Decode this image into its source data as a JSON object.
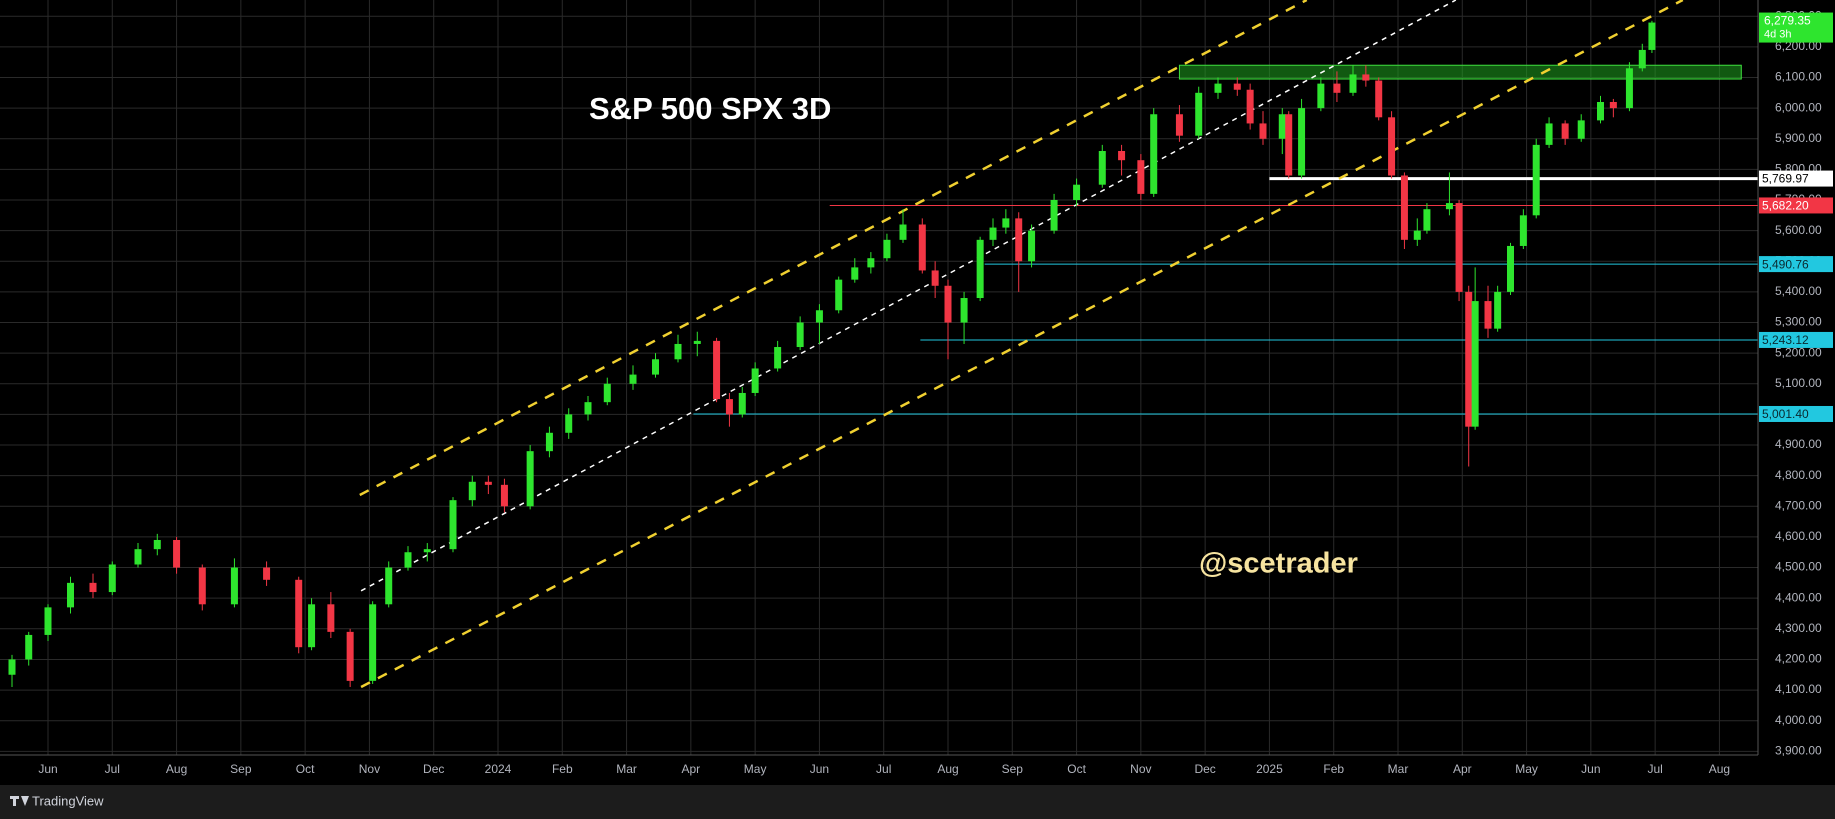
{
  "chart_data": {
    "type": "candlestick",
    "title": "S&P 500 SPX 3D",
    "watermark": "@scetrader",
    "brand": "TradingView",
    "up_color": "#2ee52e",
    "down_color": "#f23645",
    "grid": true,
    "xlim": [
      -0.56,
      26.6
    ],
    "ylim": [
      3888,
      6353
    ],
    "xticks": [
      {
        "value": 0,
        "label": "Jun"
      },
      {
        "value": 1,
        "label": "Jul"
      },
      {
        "value": 2,
        "label": "Aug"
      },
      {
        "value": 3,
        "label": "Sep"
      },
      {
        "value": 4,
        "label": "Oct"
      },
      {
        "value": 5,
        "label": "Nov"
      },
      {
        "value": 6,
        "label": "Dec"
      },
      {
        "value": 7,
        "label": "2024"
      },
      {
        "value": 8,
        "label": "Feb"
      },
      {
        "value": 9,
        "label": "Mar"
      },
      {
        "value": 10,
        "label": "Apr"
      },
      {
        "value": 11,
        "label": "May"
      },
      {
        "value": 12,
        "label": "Jun"
      },
      {
        "value": 13,
        "label": "Jul"
      },
      {
        "value": 14,
        "label": "Aug"
      },
      {
        "value": 15,
        "label": "Sep"
      },
      {
        "value": 16,
        "label": "Oct"
      },
      {
        "value": 17,
        "label": "Nov"
      },
      {
        "value": 18,
        "label": "Dec"
      },
      {
        "value": 19,
        "label": "2025"
      },
      {
        "value": 20,
        "label": "Feb"
      },
      {
        "value": 21,
        "label": "Mar"
      },
      {
        "value": 22,
        "label": "Apr"
      },
      {
        "value": 23,
        "label": "May"
      },
      {
        "value": 24,
        "label": "Jun"
      },
      {
        "value": 25,
        "label": "Jul"
      },
      {
        "value": 26,
        "label": "Aug"
      }
    ],
    "yticks": [
      {
        "value": 3900,
        "label": "3,900.00"
      },
      {
        "value": 4000,
        "label": "4,000.00"
      },
      {
        "value": 4100,
        "label": "4,100.00"
      },
      {
        "value": 4200,
        "label": "4,200.00"
      },
      {
        "value": 4300,
        "label": "4,300.00"
      },
      {
        "value": 4400,
        "label": "4,400.00"
      },
      {
        "value": 4500,
        "label": "4,500.00"
      },
      {
        "value": 4600,
        "label": "4,600.00"
      },
      {
        "value": 4700,
        "label": "4,700.00"
      },
      {
        "value": 4800,
        "label": "4,800.00"
      },
      {
        "value": 4900,
        "label": "4,900.00"
      },
      {
        "value": 5000,
        "label": "5,000.00"
      },
      {
        "value": 5100,
        "label": "5,100.00"
      },
      {
        "value": 5200,
        "label": "5,200.00"
      },
      {
        "value": 5300,
        "label": "5,300.00"
      },
      {
        "value": 5400,
        "label": "5,400.00"
      },
      {
        "value": 5500,
        "label": "5,500.00"
      },
      {
        "value": 5600,
        "label": "5,600.00"
      },
      {
        "value": 5700,
        "label": "5,700.00"
      },
      {
        "value": 5800,
        "label": "5,800.00"
      },
      {
        "value": 5900,
        "label": "5,900.00"
      },
      {
        "value": 6000,
        "label": "6,000.00"
      },
      {
        "value": 6100,
        "label": "6,100.00"
      },
      {
        "value": 6200,
        "label": "6,200.00"
      },
      {
        "value": 6300,
        "label": "6,300.00"
      }
    ],
    "x": [
      -0.56,
      -0.3,
      0.0,
      0.35,
      0.7,
      1.0,
      1.4,
      1.7,
      2.0,
      2.4,
      2.9,
      3.4,
      3.9,
      4.1,
      4.4,
      4.7,
      5.05,
      5.3,
      5.6,
      5.9,
      6.3,
      6.6,
      6.85,
      7.1,
      7.5,
      7.8,
      8.1,
      8.4,
      8.7,
      9.1,
      9.45,
      9.8,
      10.1,
      10.4,
      10.6,
      10.8,
      11.0,
      11.35,
      11.7,
      12.0,
      12.3,
      12.55,
      12.8,
      13.05,
      13.3,
      13.6,
      13.8,
      14.0,
      14.25,
      14.5,
      14.7,
      14.9,
      15.1,
      15.3,
      15.65,
      16.0,
      16.4,
      16.7,
      17.0,
      17.2,
      17.6,
      17.9,
      18.2,
      18.5,
      18.7,
      18.9,
      19.2,
      19.3,
      19.5,
      19.8,
      20.05,
      20.3,
      20.5,
      20.7,
      20.9,
      21.1,
      21.3,
      21.45,
      21.8,
      21.95,
      22.1,
      22.2,
      22.4,
      22.55,
      22.75,
      22.95,
      23.15,
      23.35,
      23.6,
      23.85,
      24.15,
      24.35,
      24.6,
      24.8,
      24.95
    ],
    "ohlc": [
      [
        4150,
        4215,
        4110,
        4200
      ],
      [
        4200,
        4290,
        4180,
        4280
      ],
      [
        4280,
        4380,
        4260,
        4370
      ],
      [
        4370,
        4470,
        4350,
        4450
      ],
      [
        4450,
        4480,
        4400,
        4420
      ],
      [
        4420,
        4520,
        4410,
        4510
      ],
      [
        4510,
        4580,
        4500,
        4560
      ],
      [
        4560,
        4610,
        4540,
        4590
      ],
      [
        4590,
        4600,
        4480,
        4500
      ],
      [
        4500,
        4510,
        4360,
        4380
      ],
      [
        4380,
        4530,
        4370,
        4500
      ],
      [
        4500,
        4520,
        4440,
        4460
      ],
      [
        4460,
        4470,
        4220,
        4240
      ],
      [
        4240,
        4400,
        4230,
        4380
      ],
      [
        4380,
        4420,
        4270,
        4290
      ],
      [
        4290,
        4300,
        4110,
        4130
      ],
      [
        4130,
        4390,
        4120,
        4380
      ],
      [
        4380,
        4520,
        4370,
        4500
      ],
      [
        4500,
        4570,
        4490,
        4550
      ],
      [
        4550,
        4580,
        4520,
        4560
      ],
      [
        4560,
        4730,
        4550,
        4720
      ],
      [
        4720,
        4800,
        4700,
        4780
      ],
      [
        4780,
        4800,
        4740,
        4770
      ],
      [
        4770,
        4790,
        4680,
        4700
      ],
      [
        4700,
        4900,
        4690,
        4880
      ],
      [
        4880,
        4960,
        4860,
        4940
      ],
      [
        4940,
        5020,
        4920,
        5000
      ],
      [
        5000,
        5060,
        4980,
        5040
      ],
      [
        5040,
        5120,
        5030,
        5100
      ],
      [
        5100,
        5160,
        5080,
        5130
      ],
      [
        5130,
        5200,
        5120,
        5180
      ],
      [
        5180,
        5260,
        5170,
        5230
      ],
      [
        5230,
        5270,
        5190,
        5240
      ],
      [
        5240,
        5250,
        5040,
        5050
      ],
      [
        5050,
        5070,
        4960,
        5000
      ],
      [
        5000,
        5090,
        4990,
        5070
      ],
      [
        5070,
        5170,
        5060,
        5150
      ],
      [
        5150,
        5240,
        5140,
        5220
      ],
      [
        5220,
        5320,
        5210,
        5300
      ],
      [
        5300,
        5360,
        5230,
        5340
      ],
      [
        5340,
        5450,
        5330,
        5440
      ],
      [
        5440,
        5510,
        5430,
        5480
      ],
      [
        5480,
        5530,
        5460,
        5510
      ],
      [
        5510,
        5590,
        5500,
        5570
      ],
      [
        5570,
        5670,
        5560,
        5620
      ],
      [
        5620,
        5640,
        5460,
        5470
      ],
      [
        5470,
        5500,
        5380,
        5420
      ],
      [
        5420,
        5440,
        5180,
        5300
      ],
      [
        5300,
        5400,
        5230,
        5380
      ],
      [
        5380,
        5580,
        5370,
        5570
      ],
      [
        5570,
        5640,
        5550,
        5610
      ],
      [
        5610,
        5670,
        5590,
        5640
      ],
      [
        5640,
        5660,
        5400,
        5500
      ],
      [
        5500,
        5620,
        5480,
        5600
      ],
      [
        5600,
        5720,
        5590,
        5700
      ],
      [
        5700,
        5770,
        5680,
        5750
      ],
      [
        5750,
        5880,
        5740,
        5860
      ],
      [
        5860,
        5880,
        5780,
        5830
      ],
      [
        5830,
        5850,
        5700,
        5720
      ],
      [
        5720,
        6000,
        5710,
        5980
      ],
      [
        5980,
        6010,
        5890,
        5910
      ],
      [
        5910,
        6070,
        5900,
        6050
      ],
      [
        6050,
        6100,
        6030,
        6080
      ],
      [
        6080,
        6100,
        6040,
        6060
      ],
      [
        6060,
        6080,
        5930,
        5950
      ],
      [
        5950,
        5990,
        5880,
        5900
      ],
      [
        5900,
        6000,
        5850,
        5980
      ],
      [
        5980,
        5990,
        5770,
        5780
      ],
      [
        5780,
        6030,
        5770,
        6000
      ],
      [
        6000,
        6100,
        5990,
        6080
      ],
      [
        6080,
        6120,
        6020,
        6050
      ],
      [
        6050,
        6140,
        6040,
        6110
      ],
      [
        6110,
        6140,
        6070,
        6090
      ],
      [
        6090,
        6100,
        5960,
        5970
      ],
      [
        5970,
        5990,
        5770,
        5780
      ],
      [
        5780,
        5790,
        5540,
        5570
      ],
      [
        5570,
        5640,
        5550,
        5600
      ],
      [
        5600,
        5690,
        5590,
        5670
      ],
      [
        5670,
        5790,
        5650,
        5690
      ],
      [
        5690,
        5700,
        5370,
        5400
      ],
      [
        5400,
        5420,
        4830,
        4960
      ],
      [
        4960,
        5480,
        4950,
        5370
      ],
      [
        5370,
        5420,
        5250,
        5280
      ],
      [
        5280,
        5420,
        5270,
        5400
      ],
      [
        5400,
        5560,
        5390,
        5550
      ],
      [
        5550,
        5670,
        5540,
        5650
      ],
      [
        5650,
        5900,
        5640,
        5880
      ],
      [
        5880,
        5970,
        5870,
        5950
      ],
      [
        5950,
        5960,
        5880,
        5900
      ],
      [
        5900,
        5980,
        5890,
        5960
      ],
      [
        5960,
        6040,
        5950,
        6020
      ],
      [
        6020,
        6030,
        5970,
        6000
      ],
      [
        6000,
        6150,
        5990,
        6130
      ],
      [
        6130,
        6210,
        6120,
        6190
      ],
      [
        6190,
        6285,
        6180,
        6279.35
      ]
    ],
    "trendlines": [
      {
        "x": [
          4.85,
          19.58
        ],
        "y": [
          4737,
          6353
        ],
        "color": "#f0d030"
      },
      {
        "x": [
          4.87,
          21.9
        ],
        "y": [
          4424,
          6353
        ],
        "color": "#ffffff"
      },
      {
        "x": [
          4.87,
          25.43
        ],
        "y": [
          4110,
          6353
        ],
        "color": "#f0d030"
      }
    ],
    "zone": {
      "x": [
        17.6,
        26.34
      ],
      "y": [
        6095,
        6140
      ],
      "color": "#1fa31f"
    },
    "levels": [
      {
        "value": 5769.97,
        "label": "5,769.97",
        "color": "#ffffff",
        "text_color": "#000000",
        "from": 19.0,
        "line_width": 3
      },
      {
        "value": 5682.2,
        "label": "5,682.20",
        "color": "#f23645",
        "text_color": "#ffffff",
        "from": 12.16,
        "line_width": 1
      },
      {
        "value": 5490.76,
        "label": "5,490.76",
        "color": "#22c8e0",
        "text_color": "#0a2a30",
        "from": 14.57,
        "line_width": 1
      },
      {
        "value": 5243.12,
        "label": "5,243.12",
        "color": "#22c8e0",
        "text_color": "#0a2a30",
        "from": 13.57,
        "line_width": 1
      },
      {
        "value": 5001.4,
        "label": "5,001.40",
        "color": "#22c8e0",
        "text_color": "#0a2a30",
        "from": 10.04,
        "line_width": 1
      }
    ],
    "last": {
      "value": 6279.35,
      "label": "6,279.35",
      "countdown": "4d 3h",
      "color": "#2ee52e"
    }
  }
}
